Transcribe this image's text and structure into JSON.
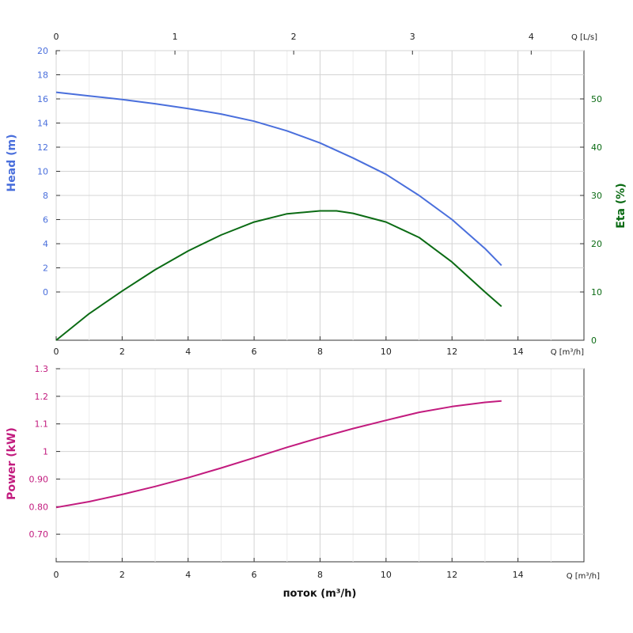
{
  "chart_data": [
    {
      "type": "line",
      "name_panel": "head-eta",
      "x_unit_label": "Q [m³/h]",
      "top_x_unit_label": "Q [L/s]",
      "x_ticks": [
        "0",
        "2",
        "4",
        "6",
        "8",
        "10",
        "12",
        "14"
      ],
      "top_x_ticks": [
        "0",
        "1",
        "2",
        "3",
        "4"
      ],
      "xlim": [
        0,
        16
      ],
      "top_xlim": [
        0,
        4.444
      ],
      "y_left_label": "Head (m)",
      "y_left_ticks": [
        "0",
        "2",
        "4",
        "6",
        "8",
        "10",
        "12",
        "14",
        "16",
        "18",
        "20"
      ],
      "y_left_lim": [
        -4,
        20
      ],
      "y_right_label": "Eta (%)",
      "y_right_ticks": [
        "0",
        "10",
        "20",
        "30",
        "40",
        "50"
      ],
      "y_right_lim": [
        0,
        60
      ],
      "grid": true,
      "series": [
        {
          "axis": "left",
          "color": "#4a6fdc",
          "x": [
            0,
            1,
            2,
            3,
            4,
            5,
            6,
            7,
            8,
            9,
            10,
            11,
            12,
            13,
            13.5
          ],
          "y": [
            16.55,
            16.25,
            15.95,
            15.6,
            15.2,
            14.75,
            14.15,
            13.35,
            12.35,
            11.1,
            9.75,
            8.0,
            6.0,
            3.6,
            2.2
          ]
        },
        {
          "axis": "right",
          "color": "#0b6b14",
          "x": [
            0,
            1,
            2,
            3,
            4,
            5,
            6,
            7,
            8,
            8.5,
            9,
            10,
            11,
            12,
            13,
            13.5
          ],
          "y": [
            0,
            5.5,
            10.2,
            14.6,
            18.5,
            21.8,
            24.5,
            26.2,
            26.8,
            26.8,
            26.3,
            24.5,
            21.3,
            16.2,
            10.0,
            7.0
          ]
        }
      ]
    },
    {
      "type": "line",
      "name_panel": "power",
      "x_unit_label": "Q [m³/h]",
      "x_ticks": [
        "0",
        "2",
        "4",
        "6",
        "8",
        "10",
        "12",
        "14"
      ],
      "xlim": [
        0,
        16
      ],
      "xlabel": "поток (m³/h)",
      "ylabel": "Power (kW)",
      "y_ticks": [
        "0.70",
        "0.80",
        "0.90",
        "1",
        "1.1",
        "1.2",
        "1.3"
      ],
      "ylim": [
        0.6,
        1.3
      ],
      "grid": true,
      "series": [
        {
          "color": "#c21b7e",
          "x": [
            0,
            1,
            2,
            3,
            4,
            5,
            6,
            7,
            8,
            9,
            10,
            11,
            12,
            13,
            13.5
          ],
          "y": [
            0.797,
            0.818,
            0.844,
            0.873,
            0.905,
            0.94,
            0.977,
            1.015,
            1.05,
            1.083,
            1.113,
            1.142,
            1.163,
            1.178,
            1.183
          ]
        }
      ]
    }
  ]
}
